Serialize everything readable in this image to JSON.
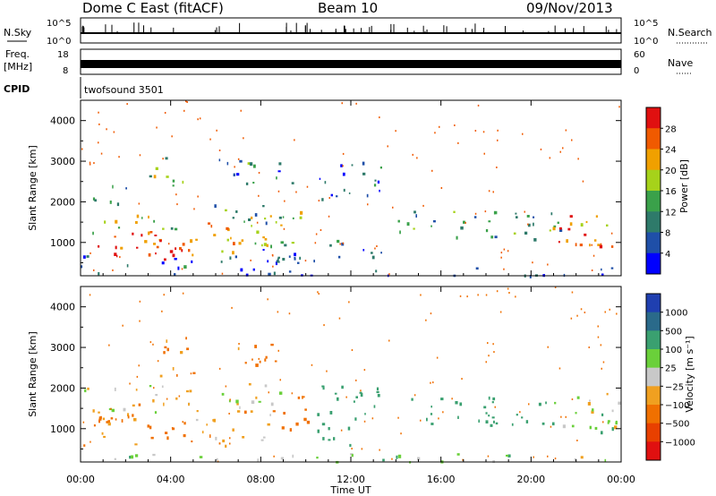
{
  "header": {
    "station": "Dome C East (fitACF)",
    "beam": "Beam 10",
    "date": "09/Nov/2013"
  },
  "summary": {
    "nsky_label": "N.Sky",
    "nsky_ticks": [
      "10^5",
      "10^0"
    ],
    "nsearch_label": "N.Search",
    "freq_label_1": "Freq.",
    "freq_label_2": "[MHz]",
    "freq_ticks": [
      "18",
      "8"
    ],
    "nave_label": "Nave",
    "nave_ticks": [
      "60",
      "0"
    ],
    "cpid_label": "CPID",
    "cpid_value": "twofsound 3501"
  },
  "colors": {
    "power_scale": [
      "#0000ff",
      "#1f4fa8",
      "#2e7a6a",
      "#3aa14a",
      "#a6d21a",
      "#f0a000",
      "#f05a00",
      "#e01010"
    ],
    "velocity_scale": [
      "#1f3fb0",
      "#2a6a8a",
      "#3aa070",
      "#6ad03a",
      "#c8c8c8",
      "#f0a020",
      "#f07000",
      "#e84000",
      "#e01010"
    ]
  },
  "chart_data": [
    {
      "type": "heatmap",
      "name": "power",
      "ylabel": "Slant Range [km]",
      "xlabel": "Time UT",
      "x_ticks": [
        "00:00",
        "04:00",
        "08:00",
        "12:00",
        "16:00",
        "20:00",
        "00:00"
      ],
      "xlim_hours": [
        0,
        24
      ],
      "y_ticks": [
        1000,
        2000,
        3000,
        4000
      ],
      "ylim_km": [
        180,
        4500
      ],
      "colorbar_label": "Power [dB]",
      "colorbar_ticks": [
        "4",
        "8",
        "12",
        "16",
        "20",
        "24",
        "28"
      ],
      "blobs": [
        {
          "t0": 0.1,
          "t1": 6.0,
          "r0": 600,
          "r1": 1300,
          "v": 27
        },
        {
          "t0": 0.1,
          "t1": 4.5,
          "r0": 1200,
          "r1": 1700,
          "v": 18
        },
        {
          "t0": 2.0,
          "t1": 6.8,
          "r0": 700,
          "r1": 1100,
          "v": 26
        },
        {
          "t0": 5.5,
          "t1": 8.8,
          "r0": 800,
          "r1": 1500,
          "v": 21
        },
        {
          "t0": 7.0,
          "t1": 9.8,
          "r0": 900,
          "r1": 2000,
          "v": 17
        },
        {
          "t0": 5.8,
          "t1": 8.8,
          "r0": 1400,
          "r1": 2000,
          "v": 12
        },
        {
          "t0": 6.0,
          "t1": 9.5,
          "r0": 2400,
          "r1": 3100,
          "v": 10
        },
        {
          "t0": 3.0,
          "t1": 4.8,
          "r0": 2400,
          "r1": 3200,
          "v": 14
        },
        {
          "t0": 0.2,
          "t1": 2.0,
          "r0": 1900,
          "r1": 2500,
          "v": 9
        },
        {
          "t0": 0.0,
          "t1": 9.8,
          "r0": 200,
          "r1": 700,
          "v": 6
        },
        {
          "t0": 8.0,
          "t1": 10.5,
          "r0": 200,
          "r1": 900,
          "v": 5
        },
        {
          "t0": 10.5,
          "t1": 13.5,
          "r0": 2000,
          "r1": 3100,
          "v": 8
        },
        {
          "t0": 11.0,
          "t1": 13.5,
          "r0": 600,
          "r1": 1200,
          "v": 7
        },
        {
          "t0": 13.8,
          "t1": 18.5,
          "r0": 1100,
          "r1": 1800,
          "v": 13
        },
        {
          "t0": 18.0,
          "t1": 21.5,
          "r0": 1100,
          "r1": 1800,
          "v": 11
        },
        {
          "t0": 20.8,
          "t1": 24.0,
          "r0": 900,
          "r1": 1700,
          "v": 22
        },
        {
          "t0": 21.0,
          "t1": 23.2,
          "r0": 900,
          "r1": 1400,
          "v": 28
        },
        {
          "t0": 13.0,
          "t1": 24.0,
          "r0": 200,
          "r1": 400,
          "v": 4
        }
      ]
    },
    {
      "type": "heatmap",
      "name": "velocity",
      "ylabel": "Slant Range [km]",
      "xlabel": "Time UT",
      "x_ticks": [
        "00:00",
        "04:00",
        "08:00",
        "12:00",
        "16:00",
        "20:00",
        "00:00"
      ],
      "xlim_hours": [
        0,
        24
      ],
      "y_ticks": [
        1000,
        2000,
        3000,
        4000
      ],
      "ylim_km": [
        180,
        4500
      ],
      "colorbar_label": "Velocity [m s⁻¹]",
      "colorbar_ticks": [
        "1000",
        "500",
        "100",
        "25",
        "−25",
        "−100",
        "−500",
        "−1000"
      ],
      "blobs": [
        {
          "t0": 0.1,
          "t1": 6.5,
          "r0": 600,
          "r1": 1400,
          "v": -120
        },
        {
          "t0": 0.1,
          "t1": 5.0,
          "r0": 1400,
          "r1": 2100,
          "v": 0
        },
        {
          "t0": 5.0,
          "t1": 8.5,
          "r0": 700,
          "r1": 1500,
          "v": -60
        },
        {
          "t0": 6.0,
          "t1": 9.0,
          "r0": 1500,
          "r1": 2200,
          "v": 0
        },
        {
          "t0": 8.5,
          "t1": 10.3,
          "r0": 900,
          "r1": 2000,
          "v": -400
        },
        {
          "t0": 6.0,
          "t1": 9.0,
          "r0": 2500,
          "r1": 3100,
          "v": -120
        },
        {
          "t0": 3.0,
          "t1": 5.0,
          "r0": 2300,
          "r1": 3300,
          "v": -120
        },
        {
          "t0": 0.5,
          "t1": 3.0,
          "r0": 1100,
          "r1": 1700,
          "v": -120
        },
        {
          "t0": 10.5,
          "t1": 13.2,
          "r0": 600,
          "r1": 2300,
          "v": 300
        },
        {
          "t0": 13.8,
          "t1": 18.5,
          "r0": 1100,
          "r1": 1800,
          "v": 300
        },
        {
          "t0": 18.0,
          "t1": 21.0,
          "r0": 1100,
          "r1": 1800,
          "v": 300
        },
        {
          "t0": 21.0,
          "t1": 24.0,
          "r0": 1000,
          "r1": 1900,
          "v": 0
        },
        {
          "t0": 21.5,
          "t1": 23.8,
          "r0": 900,
          "r1": 1500,
          "v": 80
        },
        {
          "t0": 0.0,
          "t1": 24.0,
          "r0": 200,
          "r1": 400,
          "v": 40
        }
      ]
    }
  ]
}
